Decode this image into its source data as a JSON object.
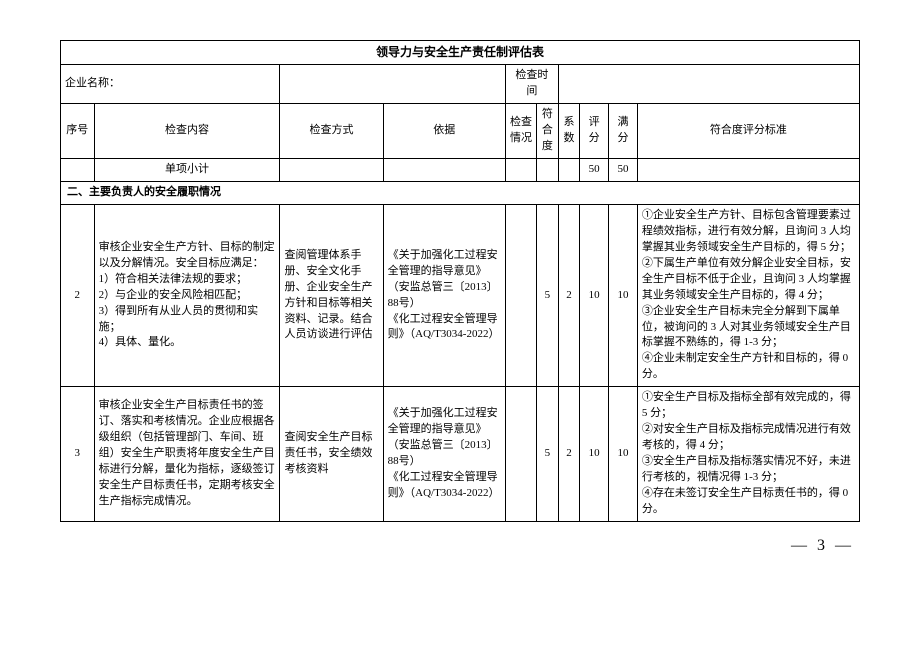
{
  "title": "领导力与安全生产责任制评估表",
  "labels": {
    "company_name": "企业名称：",
    "check_time": "检查时间"
  },
  "headers": {
    "seq": "序号",
    "check_content": "检查内容",
    "check_method": "检查方式",
    "basis": "依据",
    "check_situation": "检查情况",
    "compliance": "符合度",
    "coef": "系数",
    "score": "评分",
    "full_score": "满分",
    "criteria": "符合度评分标准"
  },
  "subtotal_row": {
    "label": "单项小计",
    "score": "50",
    "full": "50"
  },
  "section": "二、主要负责人的安全履职情况",
  "rows": [
    {
      "seq": "2",
      "content": "审核企业安全生产方针、目标的制定以及分解情况。安全目标应满足：\n1）符合相关法律法规的要求；\n2）与企业的安全风险相匹配；\n3）得到所有从业人员的贯彻和实施；\n4）具体、量化。",
      "method": "查阅管理体系手册、安全文化手册、企业安全生产方针和目标等相关资料、记录。结合人员访谈进行评估",
      "basis": "《关于加强化工过程安全管理的指导意见》（安监总管三〔2013〕88号）\n《化工过程安全管理导则》（AQ/T3034-2022）",
      "compliance": "5",
      "coef": "2",
      "score": "10",
      "full": "10",
      "criteria": [
        "①企业安全生产方针、目标包含管理要素过程绩效指标，进行有效分解，且询问 3 人均掌握其业务领域安全生产目标的，得 5 分；",
        "②下属生产单位有效分解企业安全目标，安全生产目标不低于企业，且询问 3 人均掌握其业务领域安全生产目标的，得 4 分；",
        "③企业安全生产目标未完全分解到下属单位，被询问的 3 人对其业务领域安全生产目标掌握不熟练的，得 1-3 分；",
        "④企业未制定安全生产方针和目标的，得 0 分。"
      ]
    },
    {
      "seq": "3",
      "content": "审核企业安全生产目标责任书的签订、落实和考核情况。企业应根据各级组织（包括管理部门、车间、班组）安全生产职责将年度安全生产目标进行分解，量化为指标，逐级签订安全生产目标责任书，定期考核安全生产指标完成情况。",
      "method": "查阅安全生产目标责任书，安全绩效考核资料",
      "basis": "《关于加强化工过程安全管理的指导意见》（安监总管三〔2013〕88号）\n《化工过程安全管理导则》（AQ/T3034-2022）",
      "compliance": "5",
      "coef": "2",
      "score": "10",
      "full": "10",
      "criteria": [
        "①安全生产目标及指标全部有效完成的，得 5 分；",
        "②对安全生产目标及指标完成情况进行有效考核的，得 4 分；",
        "③安全生产目标及指标落实情况不好，未进行考核的，视情况得 1-3 分；",
        "④存在未签订安全生产目标责任书的，得 0 分。"
      ]
    }
  ],
  "page_number": "— 3 —"
}
